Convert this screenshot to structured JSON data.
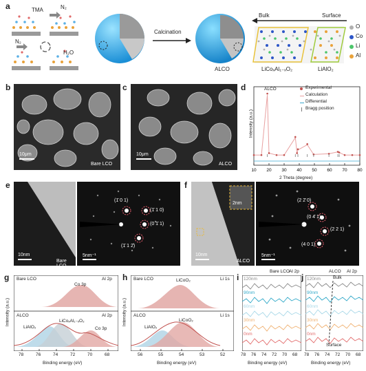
{
  "panels": {
    "a": {
      "label": "a",
      "tma": "TMA",
      "n2_top": "N₂",
      "n2_left": "N₂",
      "h2o": "H₂O",
      "calcination": "Calcination",
      "alco": "ALCO",
      "bulk": "Bulk",
      "surface": "Surface",
      "bulk_phase": "LiCoₓAl₁₋ₓO₂",
      "surface_phase": "LiAlO₂",
      "legend": [
        {
          "symbol": "O",
          "color": "#b0b0b0"
        },
        {
          "symbol": "Co",
          "color": "#2d56c8"
        },
        {
          "symbol": "Li",
          "color": "#4cc56b"
        },
        {
          "symbol": "Al",
          "color": "#e9a23a"
        }
      ]
    },
    "b": {
      "label": "b",
      "scale": "10μm",
      "tag": "Bare LCO"
    },
    "c": {
      "label": "c",
      "scale": "10μm",
      "tag": "ALCO"
    },
    "d": {
      "label": "d",
      "tag": "ALCO",
      "legend": [
        "Experimental",
        "Calculation",
        "Differential",
        "Bragg position"
      ]
    },
    "e": {
      "label": "e",
      "scale_left": "10nm",
      "tag": "Bare LCO",
      "scale_right": "5nm⁻¹",
      "spots": [
        "(1̄ 0 1)",
        "(1̄ 1 0)",
        "(0 1̄ 1)",
        "(1̄ 1 2̄)"
      ]
    },
    "f": {
      "label": "f",
      "scale_left": "10nm",
      "tag": "ALCO",
      "inset_scale": "2nm",
      "scale_right": "5nm⁻¹",
      "spots": [
        "(2 2̄ 0)",
        "(0 4̄ 1)",
        "(2 2 1)",
        "(4 0 1)"
      ]
    },
    "g": {
      "label": "g",
      "top_tag": "Bare LCO",
      "top_right": "Al 2p",
      "top_peak": "Co 3p",
      "bottom_tag": "ALCO",
      "bottom_right": "Al 2p",
      "bottom_peaks": [
        "LiAlO₂",
        "LiCoₓAl₁₋ₓO₂",
        "Co 3p"
      ]
    },
    "h": {
      "label": "h",
      "top_tag": "Bare LCO",
      "top_right": "Li 1s",
      "top_peak": "LiCoO₂",
      "bottom_tag": "ALCO",
      "bottom_right": "Li 1s",
      "bottom_peaks": [
        "LiAlO₂",
        "LiCoO₂"
      ]
    },
    "i": {
      "label": "i",
      "tag": "Bare LCO",
      "right": "Al 2p",
      "depths": [
        "120nm",
        "90nm",
        "60nm",
        "30nm",
        "0nm"
      ]
    },
    "j": {
      "label": "j",
      "tag": "ALCO",
      "right": "Al 2p",
      "bulk": "Bulk",
      "surface": "Surface",
      "depths": [
        "120nm",
        "90nm",
        "60nm",
        "30nm",
        "0nm"
      ]
    }
  },
  "axes": {
    "intensity": "Intensity (a.u.)",
    "two_theta": "2 Theta (degree)",
    "binding": "Binding energy (eV)",
    "d_x_ticks": [
      "10",
      "20",
      "30",
      "40",
      "50",
      "60",
      "70",
      "80"
    ],
    "g_x_ticks": [
      "78",
      "76",
      "74",
      "72",
      "70",
      "68"
    ],
    "h_x_ticks": [
      "56",
      "55",
      "54",
      "53",
      "52"
    ],
    "i_x_ticks": [
      "78",
      "76",
      "74",
      "72",
      "70",
      "68"
    ],
    "j_x_ticks": [
      "78",
      "76",
      "74",
      "72",
      "70",
      "68"
    ]
  },
  "chart_data": [
    {
      "type": "line",
      "panel": "d",
      "xlabel": "2 Theta (degree)",
      "ylabel": "Intensity (a.u.)",
      "xlim": [
        10,
        80
      ],
      "series": [
        {
          "name": "Experimental",
          "x": [
            10,
            15,
            18.9,
            20,
            25,
            30,
            37.4,
            38.5,
            39.1,
            45.3,
            49.5,
            59.6,
            65.5,
            66.4,
            70,
            75,
            80
          ],
          "y": [
            0.05,
            0.05,
            1.0,
            0.08,
            0.05,
            0.05,
            0.33,
            0.08,
            0.14,
            0.22,
            0.06,
            0.07,
            0.1,
            0.09,
            0.05,
            0.05,
            0.05
          ]
        },
        {
          "name": "Calculation",
          "x": [
            10,
            15,
            18.9,
            20,
            25,
            30,
            37.4,
            38.5,
            39.1,
            45.3,
            49.5,
            59.6,
            65.5,
            66.4,
            70,
            75,
            80
          ],
          "y": [
            0.05,
            0.05,
            0.98,
            0.08,
            0.05,
            0.05,
            0.32,
            0.08,
            0.13,
            0.21,
            0.06,
            0.07,
            0.1,
            0.09,
            0.05,
            0.05,
            0.05
          ]
        }
      ]
    }
  ],
  "colors": {
    "xrd_points": "#c0504d",
    "xrd_calc": "#e8a0a0",
    "diff": "#3aa7d0",
    "bragg": "#7a7a7a"
  }
}
